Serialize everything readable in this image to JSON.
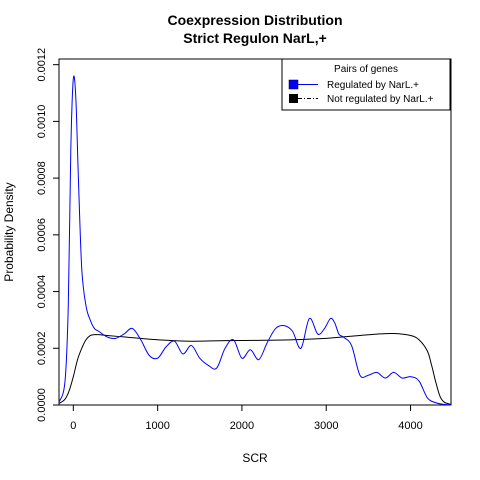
{
  "chart_data": {
    "type": "line",
    "title_line1": "Coexpression Distribution",
    "title_line2": "Strict Regulon NarL,+",
    "xlabel": "SCR",
    "ylabel": "Probability Density",
    "xlim": [
      -170,
      4480
    ],
    "ylim": [
      0,
      0.00122
    ],
    "xticks": [
      0,
      1000,
      2000,
      3000,
      4000
    ],
    "xtick_labels": [
      "0",
      "1000",
      "2000",
      "3000",
      "4000"
    ],
    "yticks": [
      0,
      0.0002,
      0.0004,
      0.0006,
      0.0008,
      0.001,
      0.0012
    ],
    "ytick_labels": [
      "0.0000",
      "0.0002",
      "0.0004",
      "0.0006",
      "0.0008",
      "0.0010",
      "0.0012"
    ],
    "grid": false,
    "legend": {
      "title": "Pairs of genes",
      "position": "top-right",
      "entries": [
        "Regulated by  NarL.+",
        "Not regulated by  NarL.+"
      ]
    },
    "series": [
      {
        "name": "Regulated by  NarL.+",
        "color": "#0000ff",
        "x": [
          -170,
          -100,
          -60,
          -30,
          0,
          30,
          60,
          100,
          150,
          200,
          250,
          300,
          400,
          500,
          600,
          700,
          800,
          900,
          1000,
          1100,
          1200,
          1300,
          1400,
          1500,
          1600,
          1700,
          1800,
          1900,
          2000,
          2100,
          2200,
          2300,
          2400,
          2500,
          2600,
          2700,
          2800,
          2900,
          2980,
          3050,
          3100,
          3150,
          3200,
          3300,
          3400,
          3500,
          3600,
          3700,
          3800,
          3900,
          4000,
          4100,
          4200,
          4300,
          4400,
          4480
        ],
        "y": [
          1e-05,
          8e-05,
          0.00035,
          0.0009,
          0.00115,
          0.00108,
          0.0008,
          0.00048,
          0.00035,
          0.0003,
          0.00027,
          0.00026,
          0.00024,
          0.000235,
          0.00025,
          0.00027,
          0.00023,
          0.000175,
          0.000165,
          0.000205,
          0.000225,
          0.00018,
          0.00021,
          0.000165,
          0.00014,
          0.00013,
          0.0002,
          0.00023,
          0.000165,
          0.000195,
          0.00016,
          0.00022,
          0.00027,
          0.00028,
          0.00026,
          0.0002,
          0.000305,
          0.00025,
          0.00027,
          0.000305,
          0.00029,
          0.00025,
          0.00024,
          0.00021,
          0.000105,
          0.000105,
          0.000115,
          9.5e-05,
          0.000115,
          9.5e-05,
          0.0001,
          8.5e-05,
          2.5e-05,
          8e-06,
          2e-06,
          0.0
        ],
        "line_style": "solid"
      },
      {
        "name": "Not regulated by  NarL.+",
        "color": "#000000",
        "x": [
          -170,
          -100,
          -50,
          0,
          50,
          100,
          150,
          200,
          250,
          300,
          400,
          600,
          800,
          1000,
          1400,
          1800,
          2200,
          2600,
          3000,
          3200,
          3400,
          3600,
          3800,
          4000,
          4100,
          4200,
          4250,
          4300,
          4350,
          4400,
          4480
        ],
        "y": [
          5e-06,
          2e-05,
          5e-05,
          0.0001,
          0.00016,
          0.0002,
          0.00023,
          0.000245,
          0.000248,
          0.000248,
          0.000245,
          0.00024,
          0.000235,
          0.00023,
          0.000225,
          0.000227,
          0.000228,
          0.00023,
          0.000235,
          0.00024,
          0.000245,
          0.00025,
          0.000252,
          0.000245,
          0.00023,
          0.00019,
          0.00014,
          8e-05,
          3e-05,
          1e-05,
          2e-06
        ],
        "line_style": "solid"
      }
    ]
  }
}
